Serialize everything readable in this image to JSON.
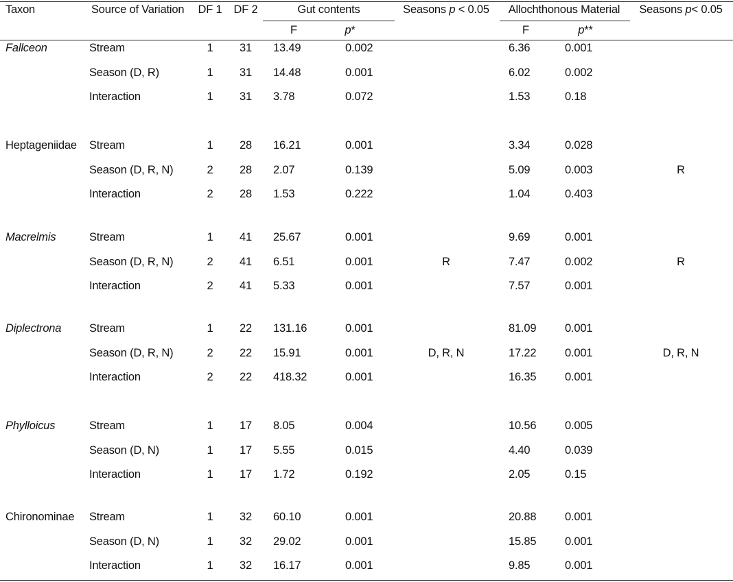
{
  "header": {
    "cols": [
      {
        "runs": [
          {
            "text": "Taxon",
            "italic": false
          }
        ]
      },
      {
        "runs": [
          {
            "text": "Source of Variation",
            "italic": false
          }
        ]
      },
      {
        "runs": [
          {
            "text": "DF 1",
            "italic": false
          }
        ]
      },
      {
        "runs": [
          {
            "text": "DF 2",
            "italic": false
          }
        ]
      },
      {
        "runs": [
          {
            "text": "Gut contents",
            "italic": false
          }
        ]
      },
      {
        "runs": [
          {
            "text": "Seasons ",
            "italic": false
          },
          {
            "text": "p",
            "italic": true
          },
          {
            "text": " < 0.05",
            "italic": false
          }
        ]
      },
      {
        "runs": [
          {
            "text": "Allochthonous Material",
            "italic": false
          }
        ]
      },
      {
        "runs": [
          {
            "text": "Seasons ",
            "italic": false
          },
          {
            "text": "p",
            "italic": true
          },
          {
            "text": "< 0.05",
            "italic": false
          }
        ]
      }
    ],
    "sub": [
      {
        "runs": [
          {
            "text": "F",
            "italic": false
          }
        ]
      },
      {
        "runs": [
          {
            "text": "p",
            "italic": true
          },
          {
            "text": "*",
            "italic": false
          }
        ]
      },
      {
        "runs": [
          {
            "text": "F",
            "italic": false
          }
        ]
      },
      {
        "runs": [
          {
            "text": "p",
            "italic": true
          },
          {
            "text": "**",
            "italic": false
          }
        ]
      }
    ]
  },
  "groups": [
    {
      "taxon": "Fallceon",
      "italic": true,
      "rows": [
        [
          "Stream",
          "1",
          "31",
          "13.49",
          "0.002",
          null,
          "6.36",
          "0.001",
          null
        ],
        [
          "Season (D, R)",
          "1",
          "31",
          "14.48",
          "0.001",
          null,
          "6.02",
          "0.002",
          null
        ],
        [
          "Interaction",
          "1",
          "31",
          "3.78",
          "0.072",
          null,
          "1.53",
          "0.18",
          null
        ]
      ]
    },
    {
      "taxon": "Heptageniidae",
      "italic": false,
      "rows": [
        [
          "Stream",
          "1",
          "28",
          "16.21",
          "0.001",
          null,
          "3.34",
          "0.028",
          null
        ],
        [
          "Season (D, R, N)",
          "2",
          "28",
          "2.07",
          "0.139",
          null,
          "5.09",
          "0.003",
          "R"
        ],
        [
          "Interaction",
          "2",
          "28",
          "1.53",
          "0.222",
          null,
          "1.04",
          "0.403",
          null
        ]
      ]
    },
    {
      "taxon": "Macrelmis",
      "italic": true,
      "rows": [
        [
          "Stream",
          "1",
          "41",
          "25.67",
          "0.001",
          null,
          "9.69",
          "0.001",
          null
        ],
        [
          "Season (D, R, N)",
          "2",
          "41",
          "6.51",
          "0.001",
          "R",
          "7.47",
          "0.002",
          "R"
        ],
        [
          "Interaction",
          "2",
          "41",
          "5.33",
          "0.001",
          null,
          "7.57",
          "0.001",
          null
        ]
      ]
    },
    {
      "taxon": "Diplectrona",
      "italic": true,
      "rows": [
        [
          "Stream",
          "1",
          "22",
          "131.16",
          "0.001",
          null,
          "81.09",
          "0.001",
          null
        ],
        [
          "Season (D, R, N)",
          "2",
          "22",
          "15.91",
          "0.001",
          "D, R, N",
          "17.22",
          "0.001",
          "D, R, N"
        ],
        [
          "Interaction",
          "2",
          "22",
          "418.32",
          "0.001",
          null,
          "16.35",
          "0.001",
          null
        ]
      ]
    },
    {
      "taxon": "Phylloicus",
      "italic": true,
      "rows": [
        [
          "Stream",
          "1",
          "17",
          "8.05",
          "0.004",
          null,
          "10.56",
          "0.005",
          null
        ],
        [
          "Season (D, N)",
          "1",
          "17",
          "5.55",
          "0.015",
          null,
          "4.40",
          "0.039",
          null
        ],
        [
          "Interaction",
          "1",
          "17",
          "1.72",
          "0.192",
          null,
          "2.05",
          "0.15",
          null
        ]
      ]
    },
    {
      "taxon": "Chironominae",
      "italic": false,
      "rows": [
        [
          "Stream",
          "1",
          "32",
          "60.10",
          "0.001",
          null,
          "20.88",
          "0.001",
          null
        ],
        [
          "Season (D, N)",
          "1",
          "32",
          "29.02",
          "0.001",
          null,
          "15.85",
          "0.001",
          null
        ],
        [
          "Interaction",
          "1",
          "32",
          "16.17",
          "0.001",
          null,
          "9.85",
          "0.001",
          null
        ]
      ]
    }
  ]
}
